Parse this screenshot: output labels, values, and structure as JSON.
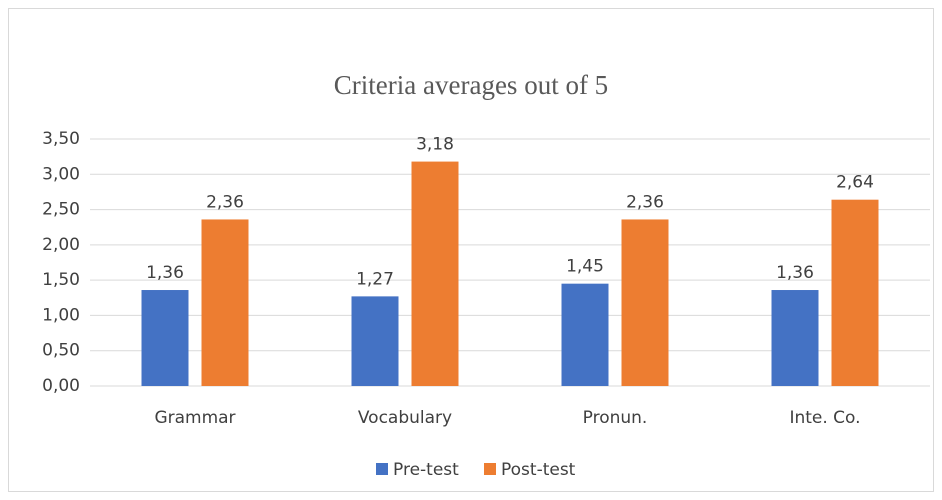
{
  "chart_data": {
    "type": "bar",
    "title": "Criteria averages out of 5",
    "categories": [
      "Grammar",
      "Vocabulary",
      "Pronun.",
      "Inte. Co."
    ],
    "series": [
      {
        "name": "Pre-test",
        "color": "#4472c4",
        "values": [
          1.36,
          1.27,
          1.45,
          1.36
        ],
        "value_labels": [
          "1,36",
          "1,27",
          "1,45",
          "1,36"
        ]
      },
      {
        "name": "Post-test",
        "color": "#ed7d31",
        "values": [
          2.36,
          3.18,
          2.36,
          2.64
        ],
        "value_labels": [
          "2,36",
          "3,18",
          "2,36",
          "2,64"
        ]
      }
    ],
    "ylim": [
      0,
      3.5
    ],
    "yticks": [
      {
        "value": 0,
        "label": "0,00"
      },
      {
        "value": 0.5,
        "label": "0,50"
      },
      {
        "value": 1,
        "label": "1,00"
      },
      {
        "value": 1.5,
        "label": "1,50"
      },
      {
        "value": 2,
        "label": "2,00"
      },
      {
        "value": 2.5,
        "label": "2,50"
      },
      {
        "value": 3,
        "label": "3,00"
      },
      {
        "value": 3.5,
        "label": "3,50"
      }
    ],
    "grid": true,
    "legend": "bottom"
  }
}
